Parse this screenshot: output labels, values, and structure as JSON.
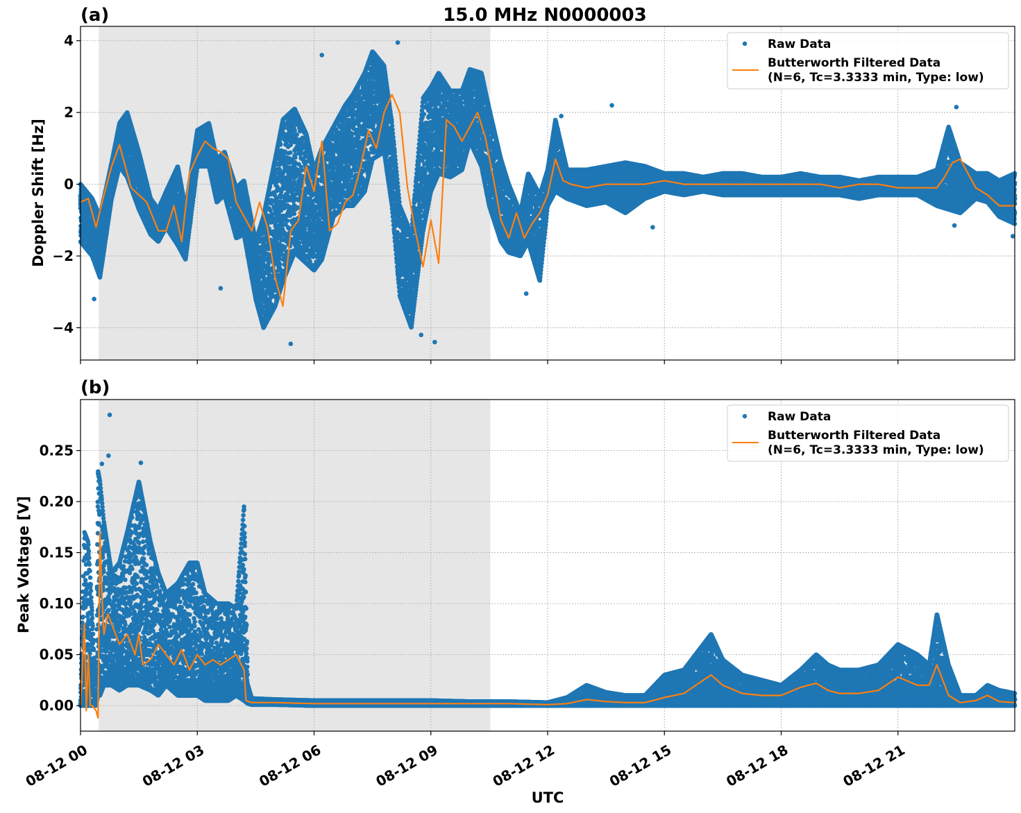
{
  "figure": {
    "title": "15.0 MHz N0000003",
    "xlabel": "UTC"
  },
  "chart_data": [
    {
      "type": "scatter",
      "panel_label": "(a)",
      "ylabel": "Doppler Shift [Hz]",
      "xlim_hours": [
        0,
        24
      ],
      "ylim": [
        -4.9,
        4.4
      ],
      "x_ticks": [
        {
          "hour": 0,
          "label": "08-12 00"
        },
        {
          "hour": 3,
          "label": "08-12 03"
        },
        {
          "hour": 6,
          "label": "08-12 06"
        },
        {
          "hour": 9,
          "label": "08-12 09"
        },
        {
          "hour": 12,
          "label": "08-12 12"
        },
        {
          "hour": 15,
          "label": "08-12 15"
        },
        {
          "hour": 18,
          "label": "08-12 18"
        },
        {
          "hour": 21,
          "label": "08-12 21"
        }
      ],
      "y_ticks": [
        {
          "value": -4,
          "label": "−4"
        },
        {
          "value": -2,
          "label": "−2"
        },
        {
          "value": 0,
          "label": "0"
        },
        {
          "value": 2,
          "label": "2"
        },
        {
          "value": 4,
          "label": "4"
        }
      ],
      "shaded_interval_hours": [
        0.47,
        10.53
      ],
      "grid": true,
      "legend": {
        "placement": "top-right",
        "entries": [
          {
            "label": "Raw Data",
            "color": "#1f77b4",
            "marker": "dot"
          },
          {
            "label": "Butterworth Filtered Data",
            "label2": "(N=6, Tc=3.3333 min, Type: low)",
            "color": "#ff7f0e",
            "marker": "line"
          }
        ]
      },
      "series": [
        {
          "name": "Raw Data",
          "color": "#1f77b4",
          "envelope": {
            "x": [
              0,
              0.3,
              0.5,
              0.8,
              1.0,
              1.2,
              1.5,
              1.8,
              2.0,
              2.2,
              2.5,
              2.7,
              3.0,
              3.3,
              3.5,
              3.7,
              4.0,
              4.2,
              4.5,
              4.7,
              5.0,
              5.2,
              5.5,
              5.8,
              6.0,
              6.2,
              6.5,
              6.8,
              7.0,
              7.3,
              7.5,
              7.8,
              8.0,
              8.2,
              8.5,
              8.8,
              9.0,
              9.2,
              9.5,
              9.8,
              10.0,
              10.3,
              10.5,
              10.8,
              11.0,
              11.3,
              11.5,
              11.8,
              12.0,
              12.2,
              12.5,
              13.0,
              13.5,
              14.0,
              14.5,
              15.0,
              15.5,
              16.0,
              16.5,
              17.0,
              17.5,
              18.0,
              18.5,
              19.0,
              19.5,
              20.0,
              20.5,
              21.0,
              21.5,
              22.0,
              22.3,
              22.6,
              23.0,
              23.3,
              23.6,
              24.0
            ],
            "high": [
              0.0,
              -0.4,
              -0.9,
              0.6,
              1.7,
              2.0,
              0.9,
              -0.4,
              -0.7,
              -0.2,
              0.5,
              -0.7,
              1.5,
              1.7,
              0.7,
              0.9,
              -0.1,
              0.1,
              -1.6,
              -0.9,
              0.7,
              1.8,
              2.1,
              1.4,
              0.4,
              1.0,
              1.6,
              2.2,
              2.5,
              3.1,
              3.7,
              3.3,
              1.7,
              -0.6,
              -1.4,
              2.4,
              2.7,
              3.1,
              2.6,
              2.6,
              3.2,
              3.1,
              2.1,
              0.7,
              0.0,
              -0.8,
              0.3,
              -0.3,
              0.4,
              1.8,
              0.4,
              0.4,
              0.5,
              0.6,
              0.5,
              0.3,
              0.3,
              0.2,
              0.3,
              0.3,
              0.2,
              0.2,
              0.3,
              0.2,
              0.2,
              0.1,
              0.2,
              0.2,
              0.2,
              0.4,
              1.6,
              0.6,
              0.3,
              0.3,
              0.1,
              0.3
            ],
            "low": [
              -1.6,
              -2.0,
              -2.6,
              -0.4,
              0.5,
              0.2,
              -0.7,
              -1.4,
              -1.6,
              -1.2,
              -1.7,
              -2.1,
              0.5,
              0.5,
              -0.5,
              -0.3,
              -1.5,
              -1.4,
              -3.2,
              -4.0,
              -3.4,
              -2.7,
              -1.9,
              -2.2,
              -2.4,
              -2.1,
              -0.9,
              -0.6,
              -0.6,
              -0.2,
              0.7,
              0.9,
              -0.6,
              -3.1,
              -4.0,
              -1.3,
              -0.2,
              0.3,
              0.2,
              0.4,
              1.2,
              0.5,
              -0.6,
              -1.6,
              -1.9,
              -2.0,
              -1.6,
              -2.7,
              -0.6,
              -0.2,
              -0.4,
              -0.6,
              -0.5,
              -0.8,
              -0.4,
              -0.2,
              -0.3,
              -0.2,
              -0.3,
              -0.3,
              -0.3,
              -0.3,
              -0.3,
              -0.3,
              -0.3,
              -0.4,
              -0.3,
              -0.3,
              -0.3,
              -0.6,
              -0.7,
              -0.8,
              -0.4,
              -0.5,
              -0.9,
              -1.1
            ]
          },
          "outliers": [
            {
              "x": 0.35,
              "y": -3.2
            },
            {
              "x": 3.6,
              "y": -2.9
            },
            {
              "x": 5.4,
              "y": -4.45
            },
            {
              "x": 6.2,
              "y": 3.6
            },
            {
              "x": 8.75,
              "y": -4.2
            },
            {
              "x": 9.1,
              "y": -4.4
            },
            {
              "x": 11.45,
              "y": -3.05
            },
            {
              "x": 13.65,
              "y": 2.2
            },
            {
              "x": 22.5,
              "y": 2.15
            },
            {
              "x": 8.15,
              "y": 3.95
            },
            {
              "x": 12.35,
              "y": 1.9
            },
            {
              "x": 14.7,
              "y": -1.2
            },
            {
              "x": 22.45,
              "y": -1.15
            },
            {
              "x": 23.95,
              "y": -1.45
            }
          ]
        },
        {
          "name": "Butterworth Filtered Data",
          "color": "#ff7f0e",
          "x": [
            0,
            0.2,
            0.4,
            0.6,
            0.8,
            1.0,
            1.1,
            1.3,
            1.5,
            1.7,
            2.0,
            2.2,
            2.4,
            2.6,
            2.8,
            3.0,
            3.2,
            3.4,
            3.6,
            3.8,
            4.0,
            4.2,
            4.4,
            4.6,
            4.8,
            5.0,
            5.2,
            5.4,
            5.6,
            5.8,
            6.0,
            6.2,
            6.4,
            6.6,
            6.8,
            7.0,
            7.2,
            7.4,
            7.6,
            7.8,
            8.0,
            8.2,
            8.4,
            8.6,
            8.8,
            9.0,
            9.2,
            9.4,
            9.6,
            9.8,
            10.0,
            10.2,
            10.4,
            10.6,
            10.8,
            11.0,
            11.2,
            11.4,
            11.6,
            11.8,
            12.0,
            12.2,
            12.4,
            12.6,
            13.0,
            13.5,
            14.0,
            14.5,
            15.0,
            15.5,
            16.0,
            16.5,
            17.0,
            17.5,
            18.0,
            18.5,
            19.0,
            19.5,
            20.0,
            20.5,
            21.0,
            21.5,
            22.0,
            22.2,
            22.4,
            22.6,
            22.8,
            23.0,
            23.3,
            23.6,
            24.0
          ],
          "y": [
            -0.5,
            -0.4,
            -1.2,
            -0.3,
            0.5,
            1.1,
            0.7,
            -0.1,
            -0.3,
            -0.5,
            -1.3,
            -1.3,
            -0.6,
            -1.6,
            0.3,
            0.8,
            1.2,
            1.0,
            0.9,
            0.7,
            -0.5,
            -0.9,
            -1.3,
            -0.5,
            -1.2,
            -2.6,
            -3.4,
            -1.3,
            -1.0,
            0.5,
            -0.2,
            1.2,
            -1.3,
            -1.1,
            -0.5,
            -0.3,
            0.5,
            1.5,
            1.0,
            2.0,
            2.5,
            2.0,
            -0.1,
            -1.3,
            -2.3,
            -1.0,
            -2.2,
            1.8,
            1.6,
            1.2,
            1.6,
            2.0,
            1.3,
            0.2,
            -1.0,
            -1.5,
            -0.8,
            -1.5,
            -1.1,
            -0.8,
            -0.3,
            0.7,
            0.1,
            0.0,
            -0.1,
            0.0,
            0.0,
            0.0,
            0.1,
            0.0,
            0.0,
            0.0,
            0.0,
            0.0,
            0.0,
            0.0,
            0.0,
            -0.1,
            0.0,
            0.0,
            -0.1,
            -0.1,
            -0.1,
            0.2,
            0.6,
            0.7,
            0.3,
            -0.1,
            -0.3,
            -0.6,
            -0.6
          ]
        }
      ]
    },
    {
      "type": "scatter",
      "panel_label": "(b)",
      "ylabel": "Peak Voltage [V]",
      "xlim_hours": [
        0,
        24
      ],
      "ylim": [
        -0.025,
        0.3
      ],
      "x_ticks": [
        {
          "hour": 0,
          "label": "08-12 00"
        },
        {
          "hour": 3,
          "label": "08-12 03"
        },
        {
          "hour": 6,
          "label": "08-12 06"
        },
        {
          "hour": 9,
          "label": "08-12 09"
        },
        {
          "hour": 12,
          "label": "08-12 12"
        },
        {
          "hour": 15,
          "label": "08-12 15"
        },
        {
          "hour": 18,
          "label": "08-12 18"
        },
        {
          "hour": 21,
          "label": "08-12 21"
        }
      ],
      "y_ticks": [
        {
          "value": 0.0,
          "label": "0.00"
        },
        {
          "value": 0.05,
          "label": "0.05"
        },
        {
          "value": 0.1,
          "label": "0.10"
        },
        {
          "value": 0.15,
          "label": "0.15"
        },
        {
          "value": 0.2,
          "label": "0.20"
        },
        {
          "value": 0.25,
          "label": "0.25"
        }
      ],
      "shaded_interval_hours": [
        0.47,
        10.53
      ],
      "grid": true,
      "legend": {
        "placement": "top-right",
        "entries": [
          {
            "label": "Raw Data",
            "color": "#1f77b4",
            "marker": "dot"
          },
          {
            "label": "Butterworth Filtered Data",
            "label2": "(N=6, Tc=3.3333 min, Type: low)",
            "color": "#ff7f0e",
            "marker": "line"
          }
        ]
      },
      "series": [
        {
          "name": "Raw Data",
          "color": "#1f77b4",
          "envelope": {
            "x": [
              0,
              0.1,
              0.2,
              0.3,
              0.4,
              0.45,
              0.5,
              0.6,
              0.8,
              1.0,
              1.2,
              1.5,
              1.8,
              2.0,
              2.2,
              2.5,
              2.8,
              3.0,
              3.2,
              3.5,
              3.8,
              4.0,
              4.2,
              4.3,
              4.4,
              5,
              6,
              7,
              8,
              9,
              10,
              11,
              12,
              12.5,
              13.0,
              13.5,
              14.0,
              14.5,
              15.0,
              15.5,
              16.0,
              16.2,
              16.5,
              17.0,
              17.5,
              18.0,
              18.5,
              18.9,
              19.2,
              19.5,
              20.0,
              20.5,
              21.0,
              21.5,
              21.8,
              22.0,
              22.3,
              22.6,
              23.0,
              23.3,
              23.6,
              24.0
            ],
            "high": [
              0.005,
              0.17,
              0.16,
              0.09,
              0.005,
              0.23,
              0.22,
              0.18,
              0.13,
              0.14,
              0.17,
              0.22,
              0.16,
              0.13,
              0.11,
              0.12,
              0.14,
              0.14,
              0.11,
              0.1,
              0.1,
              0.095,
              0.195,
              0.02,
              0.007,
              0.006,
              0.005,
              0.005,
              0.005,
              0.005,
              0.004,
              0.004,
              0.003,
              0.008,
              0.02,
              0.013,
              0.01,
              0.01,
              0.03,
              0.035,
              0.06,
              0.07,
              0.045,
              0.03,
              0.025,
              0.02,
              0.035,
              0.05,
              0.04,
              0.035,
              0.035,
              0.04,
              0.06,
              0.05,
              0.04,
              0.09,
              0.04,
              0.01,
              0.01,
              0.02,
              0.015,
              0.012
            ],
            "low": [
              0,
              0,
              0,
              0,
              0,
              0.01,
              0.01,
              0.02,
              0.02,
              0.015,
              0.02,
              0.02,
              0.015,
              0.01,
              0.02,
              0.01,
              0.01,
              0.01,
              0.005,
              0.005,
              0.005,
              0.01,
              0.005,
              0.002,
              0.001,
              0.001,
              0,
              0,
              0,
              0,
              0,
              0,
              0,
              0,
              0,
              0,
              0,
              0,
              0,
              0,
              0,
              0,
              0,
              0,
              0,
              0,
              0,
              0,
              0,
              0,
              0,
              0,
              0,
              0,
              0,
              0,
              0,
              0,
              0,
              0,
              0,
              0
            ]
          },
          "outliers": [
            {
              "x": 0.75,
              "y": 0.285
            },
            {
              "x": 0.72,
              "y": 0.245
            },
            {
              "x": 1.55,
              "y": 0.238
            },
            {
              "x": 1.45,
              "y": 0.205
            },
            {
              "x": 4.2,
              "y": 0.195
            },
            {
              "x": 0.55,
              "y": 0.237
            }
          ]
        },
        {
          "name": "Butterworth Filtered Data",
          "color": "#ff7f0e",
          "x": [
            0,
            0.1,
            0.15,
            0.2,
            0.25,
            0.3,
            0.4,
            0.45,
            0.5,
            0.55,
            0.6,
            0.7,
            0.8,
            1.0,
            1.2,
            1.4,
            1.5,
            1.6,
            1.8,
            2.0,
            2.2,
            2.4,
            2.6,
            2.8,
            3.0,
            3.2,
            3.4,
            3.6,
            3.8,
            4.0,
            4.2,
            4.25,
            4.4,
            5,
            6,
            7,
            8,
            9,
            10,
            11,
            12,
            12.5,
            13,
            13.5,
            14,
            14.5,
            15,
            15.5,
            16,
            16.2,
            16.5,
            17,
            17.5,
            18,
            18.5,
            18.9,
            19.2,
            19.5,
            20,
            20.5,
            21,
            21.5,
            21.8,
            22,
            22.3,
            22.6,
            23,
            23.3,
            23.6,
            24
          ],
          "y": [
            0.0,
            0.08,
            -0.005,
            0.05,
            0.0,
            0.0,
            -0.005,
            -0.012,
            0.17,
            0.11,
            0.07,
            0.09,
            0.08,
            0.06,
            0.07,
            0.05,
            0.07,
            0.04,
            0.045,
            0.06,
            0.05,
            0.04,
            0.055,
            0.035,
            0.05,
            0.04,
            0.045,
            0.04,
            0.045,
            0.05,
            0.035,
            0.005,
            0.003,
            0.003,
            0.002,
            0.002,
            0.002,
            0.002,
            0.002,
            0.002,
            0.001,
            0.002,
            0.006,
            0.004,
            0.003,
            0.003,
            0.008,
            0.012,
            0.025,
            0.03,
            0.02,
            0.012,
            0.01,
            0.01,
            0.018,
            0.022,
            0.015,
            0.012,
            0.012,
            0.015,
            0.028,
            0.02,
            0.02,
            0.04,
            0.01,
            0.003,
            0.005,
            0.01,
            0.004,
            0.003
          ]
        }
      ]
    }
  ]
}
